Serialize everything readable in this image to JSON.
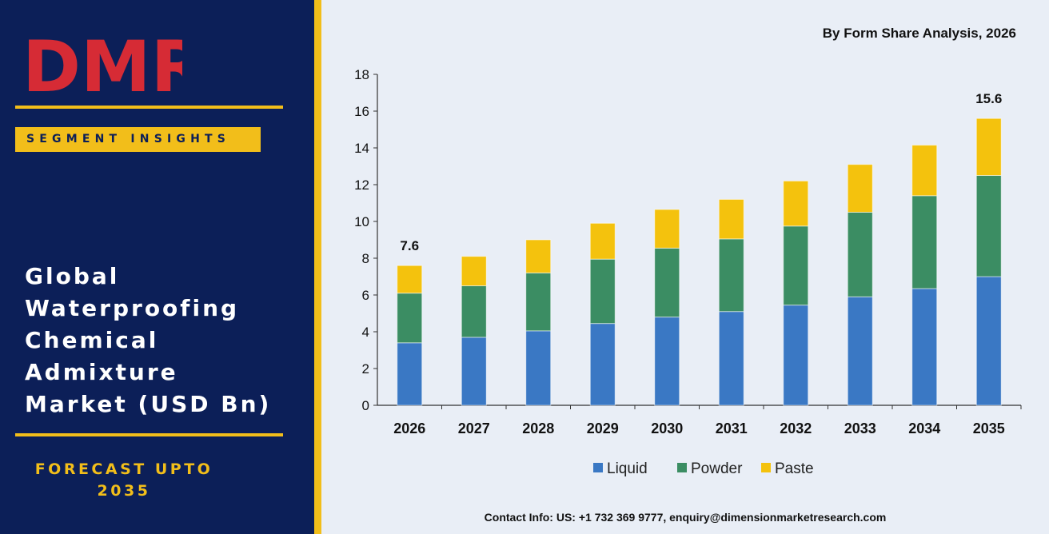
{
  "brand": {
    "logo_text": "DMR",
    "segment_badge": "SEGMENT INSIGHTS",
    "title_lines": [
      "Global",
      "Waterproofing",
      "Chemical",
      "Admixture",
      "Market (USD Bn)"
    ],
    "forecast_lines": [
      "FORECAST UPTO",
      "2035"
    ],
    "colors": {
      "navy": "#0c1f58",
      "gold": "#f2be1a",
      "logo_red": "#d62b35",
      "logo_gray": "#a9a9a9"
    }
  },
  "chart_data": {
    "type": "bar",
    "stacked": true,
    "title": "By Form Share Analysis, 2026",
    "xlabel": "",
    "ylabel": "",
    "ylim": [
      0,
      18
    ],
    "yticks": [
      0,
      2,
      4,
      6,
      8,
      10,
      12,
      14,
      16,
      18
    ],
    "grid": false,
    "legend": "bottom",
    "categories": [
      "2026",
      "2027",
      "2028",
      "2029",
      "2030",
      "2031",
      "2032",
      "2033",
      "2034",
      "2035"
    ],
    "series": [
      {
        "name": "Liquid",
        "color": "#3a78c4",
        "values": [
          3.4,
          3.7,
          4.05,
          4.45,
          4.8,
          5.1,
          5.45,
          5.9,
          6.35,
          7.0
        ]
      },
      {
        "name": "Powder",
        "color": "#3b8d63",
        "values": [
          2.7,
          2.8,
          3.15,
          3.5,
          3.75,
          3.95,
          4.3,
          4.6,
          5.05,
          5.5
        ]
      },
      {
        "name": "Paste",
        "color": "#f4c20d",
        "values": [
          1.5,
          1.6,
          1.8,
          1.95,
          2.1,
          2.15,
          2.45,
          2.6,
          2.75,
          3.1
        ]
      }
    ],
    "data_labels": [
      {
        "category": "2026",
        "text": "7.6"
      },
      {
        "category": "2035",
        "text": "15.6"
      }
    ]
  },
  "footer": {
    "contact": "Contact Info: US: +1 732 369 9777, enquiry@dimensionmarketresearch.com"
  }
}
